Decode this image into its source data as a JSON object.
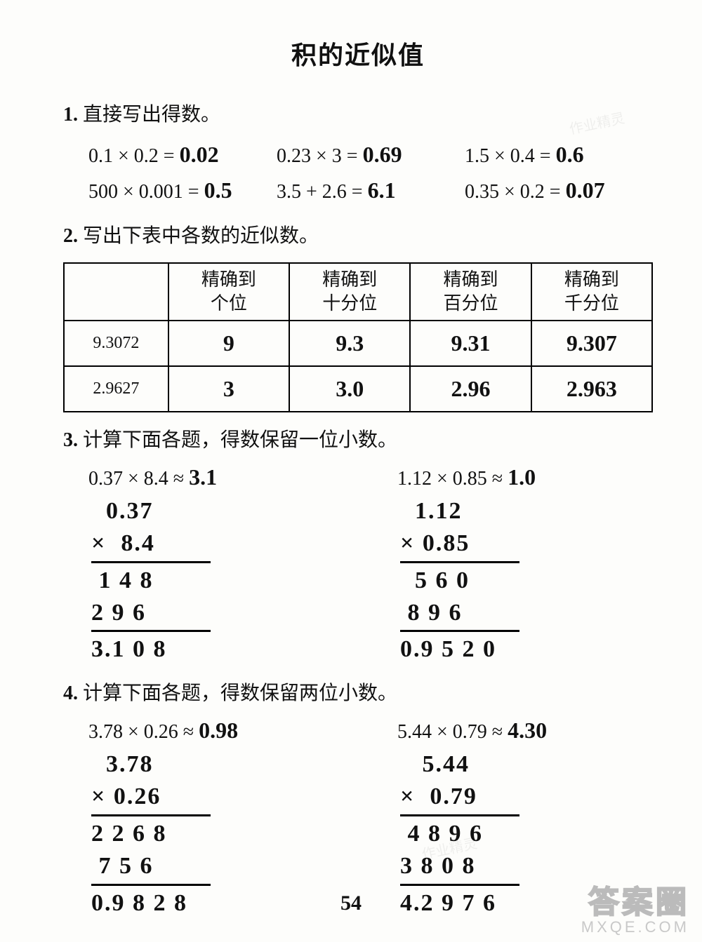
{
  "title": "积的近似值",
  "q1": {
    "num": "1.",
    "prompt": "直接写出得数。",
    "items": [
      {
        "expr": "0.1 × 0.2 =",
        "ans": "0.02"
      },
      {
        "expr": "0.23 × 3 =",
        "ans": "0.69"
      },
      {
        "expr": "1.5 × 0.4 =",
        "ans": "0.6"
      },
      {
        "expr": "500 × 0.001 =",
        "ans": "0.5"
      },
      {
        "expr": "3.5 + 2.6 =",
        "ans": "6.1"
      },
      {
        "expr": "0.35 × 0.2 =",
        "ans": "0.07"
      }
    ]
  },
  "q2": {
    "num": "2.",
    "prompt": "写出下表中各数的近似数。",
    "headers": [
      "",
      "精确到\n个位",
      "精确到\n十分位",
      "精确到\n百分位",
      "精确到\n千分位"
    ],
    "rows": [
      {
        "label": "9.3072",
        "vals": [
          "9",
          "9.3",
          "9.31",
          "9.307"
        ]
      },
      {
        "label": "2.9627",
        "vals": [
          "3",
          "3.0",
          "2.96",
          "2.963"
        ]
      }
    ]
  },
  "q3": {
    "num": "3.",
    "prompt": "计算下面各题，得数保留一位小数。",
    "left": {
      "expr": "0.37 × 8.4 ≈",
      "ans": "3.1",
      "work": [
        "  0.37",
        "×  8.4",
        "RULE",
        " 1 4 8",
        "2 9 6",
        "RULE",
        "3.1 0 8"
      ]
    },
    "right": {
      "expr": "1.12 × 0.85 ≈",
      "ans": "1.0",
      "work": [
        "  1.12",
        "× 0.85",
        "RULE",
        "  5 6 0",
        " 8 9 6",
        "RULE",
        "0.9 5 2 0"
      ]
    }
  },
  "q4": {
    "num": "4.",
    "prompt": "计算下面各题，得数保留两位小数。",
    "left": {
      "expr": "3.78 × 0.26 ≈",
      "ans": "0.98",
      "work": [
        "  3.78",
        "× 0.26",
        "RULE",
        "2 2 6 8",
        " 7 5 6",
        "RULE",
        "0.9 8 2 8"
      ]
    },
    "right": {
      "expr": "5.44 × 0.79 ≈",
      "ans": "4.30",
      "work": [
        "   5.44",
        "×  0.79",
        "RULE",
        " 4 8 9 6",
        "3 8 0 8",
        "RULE",
        "4.2 9 7 6"
      ]
    }
  },
  "pagenum": "54",
  "watermark_cn": "答案圈",
  "watermark_en": "MXQE.COM",
  "faint_mark": "作业精灵"
}
